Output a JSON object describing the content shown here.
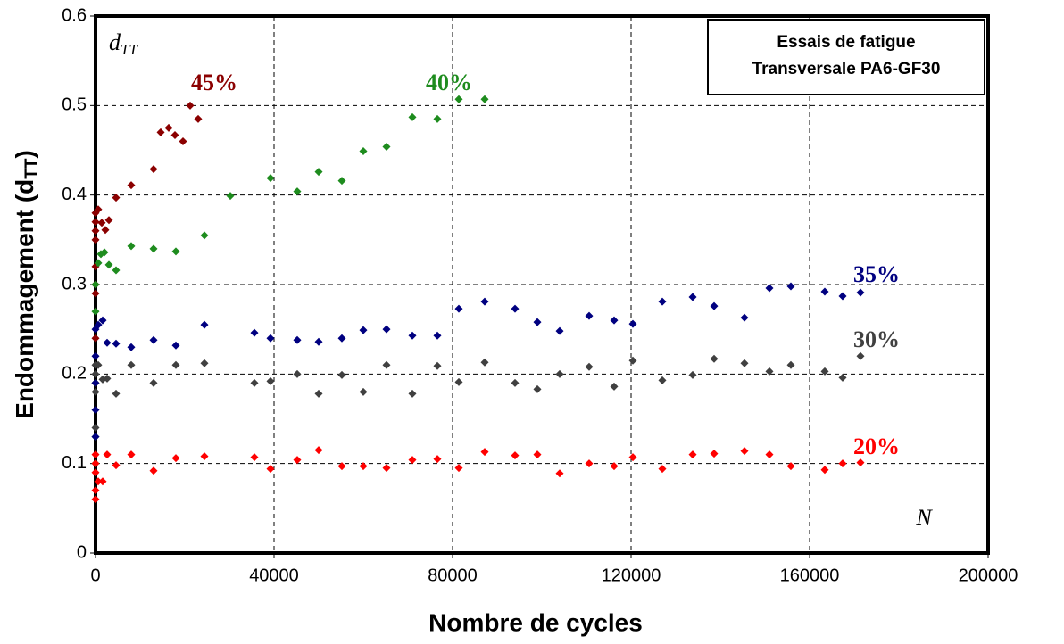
{
  "chart_data": {
    "type": "scatter",
    "title": [
      "Essais de fatigue",
      "Transversale PA6-GF30"
    ],
    "xlabel": "Nombre de cycles",
    "ylabel": [
      "Endommagement (d",
      "TT",
      ")"
    ],
    "annotations": [
      [
        "d",
        "TT"
      ],
      [
        "N"
      ]
    ],
    "xlim": [
      0,
      200000
    ],
    "ylim": [
      0,
      0.6
    ],
    "xticks": [
      0,
      40000,
      80000,
      120000,
      160000,
      200000
    ],
    "yticks": [
      0,
      0.1,
      0.2,
      0.3,
      0.4,
      0.5,
      0.6
    ],
    "grid": true,
    "series": [
      {
        "name": "45%",
        "color": "#8b0000",
        "x": [
          0,
          0,
          0,
          0,
          0,
          0,
          0,
          0,
          0,
          600,
          1400,
          2200,
          3000,
          4600,
          8000,
          13000,
          14600,
          16400,
          17800,
          19600,
          21200,
          23000
        ],
        "values": [
          0.19,
          0.24,
          0.29,
          0.3,
          0.32,
          0.35,
          0.36,
          0.37,
          0.38,
          0.384,
          0.369,
          0.361,
          0.372,
          0.397,
          0.411,
          0.429,
          0.47,
          0.475,
          0.467,
          0.46,
          0.5,
          0.485
        ]
      },
      {
        "name": "40%",
        "color": "#1e8c1e",
        "x": [
          0,
          0,
          0,
          0,
          0,
          600,
          1200,
          2000,
          3000,
          4600,
          8000,
          13000,
          18000,
          24400,
          30200,
          39200,
          45200,
          50000,
          55200,
          60000,
          65200,
          71000,
          76600,
          81400,
          87200
        ],
        "values": [
          0.1,
          0.13,
          0.19,
          0.27,
          0.3,
          0.324,
          0.334,
          0.336,
          0.322,
          0.316,
          0.343,
          0.34,
          0.337,
          0.355,
          0.399,
          0.419,
          0.404,
          0.426,
          0.416,
          0.449,
          0.454,
          0.487,
          0.485,
          0.507,
          0.507
        ]
      },
      {
        "name": "35%",
        "color": "#000080",
        "x": [
          0,
          0,
          0,
          0,
          0,
          600,
          1600,
          2600,
          4600,
          8000,
          13000,
          18000,
          24400,
          35600,
          39200,
          45200,
          50000,
          55200,
          60000,
          65200,
          71000,
          76600,
          81400,
          87200,
          94000,
          99000,
          104000,
          110600,
          116200,
          120400,
          127000,
          133800,
          138600,
          145400,
          151000,
          155800,
          163400,
          167400,
          171400
        ],
        "values": [
          0.13,
          0.16,
          0.19,
          0.22,
          0.25,
          0.255,
          0.26,
          0.235,
          0.234,
          0.23,
          0.238,
          0.232,
          0.255,
          0.246,
          0.24,
          0.238,
          0.236,
          0.24,
          0.249,
          0.25,
          0.243,
          0.243,
          0.273,
          0.281,
          0.273,
          0.258,
          0.248,
          0.265,
          0.26,
          0.256,
          0.281,
          0.286,
          0.276,
          0.263,
          0.296,
          0.298,
          0.292,
          0.287,
          0.291
        ]
      },
      {
        "name": "30%",
        "color": "#404040",
        "x": [
          0,
          0,
          0,
          0,
          600,
          1600,
          2600,
          4600,
          8000,
          13000,
          18000,
          24400,
          35600,
          39200,
          45200,
          50000,
          55200,
          60000,
          65200,
          71000,
          76600,
          81400,
          87200,
          94000,
          99000,
          104000,
          110600,
          116200,
          120400,
          127000,
          133800,
          138600,
          145400,
          151000,
          155800,
          163400,
          167400,
          171400
        ],
        "values": [
          0.14,
          0.18,
          0.2,
          0.21,
          0.21,
          0.194,
          0.195,
          0.178,
          0.21,
          0.19,
          0.21,
          0.212,
          0.19,
          0.192,
          0.2,
          0.178,
          0.199,
          0.18,
          0.21,
          0.178,
          0.209,
          0.191,
          0.213,
          0.19,
          0.183,
          0.2,
          0.208,
          0.186,
          0.215,
          0.193,
          0.199,
          0.217,
          0.212,
          0.203,
          0.21,
          0.203,
          0.196,
          0.22
        ]
      },
      {
        "name": "20%",
        "color": "#ff0000",
        "x": [
          0,
          0,
          0,
          0,
          0,
          600,
          1600,
          2600,
          4600,
          8000,
          13000,
          18000,
          24400,
          35600,
          39200,
          45200,
          50000,
          55200,
          60000,
          65200,
          71000,
          76600,
          81400,
          87200,
          94000,
          99000,
          104000,
          110600,
          116200,
          120400,
          127000,
          133800,
          138600,
          145400,
          151000,
          155800,
          163400,
          167400,
          171400
        ],
        "values": [
          0.06,
          0.07,
          0.09,
          0.1,
          0.11,
          0.08,
          0.08,
          0.11,
          0.098,
          0.11,
          0.092,
          0.106,
          0.108,
          0.107,
          0.094,
          0.104,
          0.115,
          0.097,
          0.097,
          0.095,
          0.104,
          0.105,
          0.095,
          0.113,
          0.109,
          0.11,
          0.089,
          0.1,
          0.097,
          0.107,
          0.094,
          0.11,
          0.111,
          0.114,
          0.11,
          0.097,
          0.093,
          0.1,
          0.101
        ]
      }
    ]
  }
}
